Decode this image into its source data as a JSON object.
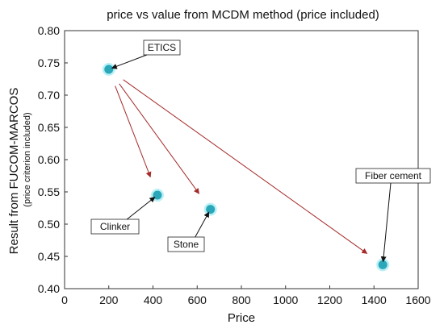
{
  "chart_data": {
    "type": "scatter",
    "title": "price vs value from MCDM method (price included)",
    "xlabel": "Price",
    "ylabel": "Result from FUCOM-MARCOS",
    "ylabel_sub": "(price criterion included)",
    "xlim": [
      0,
      1600
    ],
    "ylim": [
      0.4,
      0.8
    ],
    "x_ticks": [
      "0",
      "200",
      "400",
      "600",
      "800",
      "1000",
      "1200",
      "1400",
      "1600"
    ],
    "y_ticks": [
      "0.40",
      "0.45",
      "0.50",
      "0.55",
      "0.60",
      "0.65",
      "0.70",
      "0.75",
      "0.80"
    ],
    "grid": false,
    "points": [
      {
        "label": "ETICS",
        "x": 200,
        "y": 0.74
      },
      {
        "label": "Clinker",
        "x": 420,
        "y": 0.545
      },
      {
        "label": "Stone",
        "x": 660,
        "y": 0.523
      },
      {
        "label": "Fiber cement",
        "x": 1440,
        "y": 0.437
      }
    ],
    "colors": {
      "marker_fill": "#2aa7b8",
      "marker_halo": "#7fe3ee",
      "arrow_red": "#a52a2a",
      "arrow_black": "#111111",
      "frame": "#333333"
    }
  }
}
